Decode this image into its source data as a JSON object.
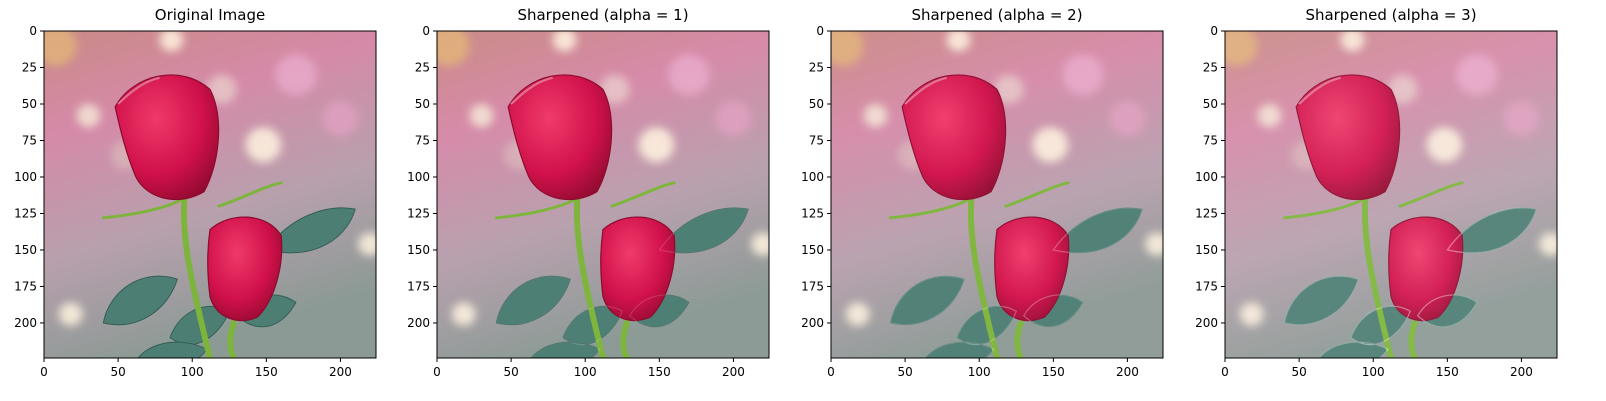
{
  "figure": {
    "panels": [
      {
        "title": "Original Image",
        "sharpen_alpha": 0
      },
      {
        "title": "Sharpened (alpha = 1)",
        "sharpen_alpha": 1
      },
      {
        "title": "Sharpened (alpha = 2)",
        "sharpen_alpha": 2
      },
      {
        "title": "Sharpened (alpha = 3)",
        "sharpen_alpha": 3
      }
    ],
    "x_ticks": [
      "0",
      "50",
      "100",
      "150",
      "200"
    ],
    "y_ticks": [
      "0",
      "25",
      "50",
      "75",
      "100",
      "125",
      "150",
      "175",
      "200"
    ],
    "image_extent": {
      "width": 224,
      "height": 224
    },
    "colors": {
      "rose": "#d0104a",
      "rose_dark": "#8c0a2e",
      "rose_highlight": "#ef3a6a",
      "leaf": "#4d7e73",
      "stem": "#7db43b",
      "bg_pink": "#d58aa8",
      "bg_gray": "#8c9a95",
      "bokeh": "#fff3df"
    }
  }
}
